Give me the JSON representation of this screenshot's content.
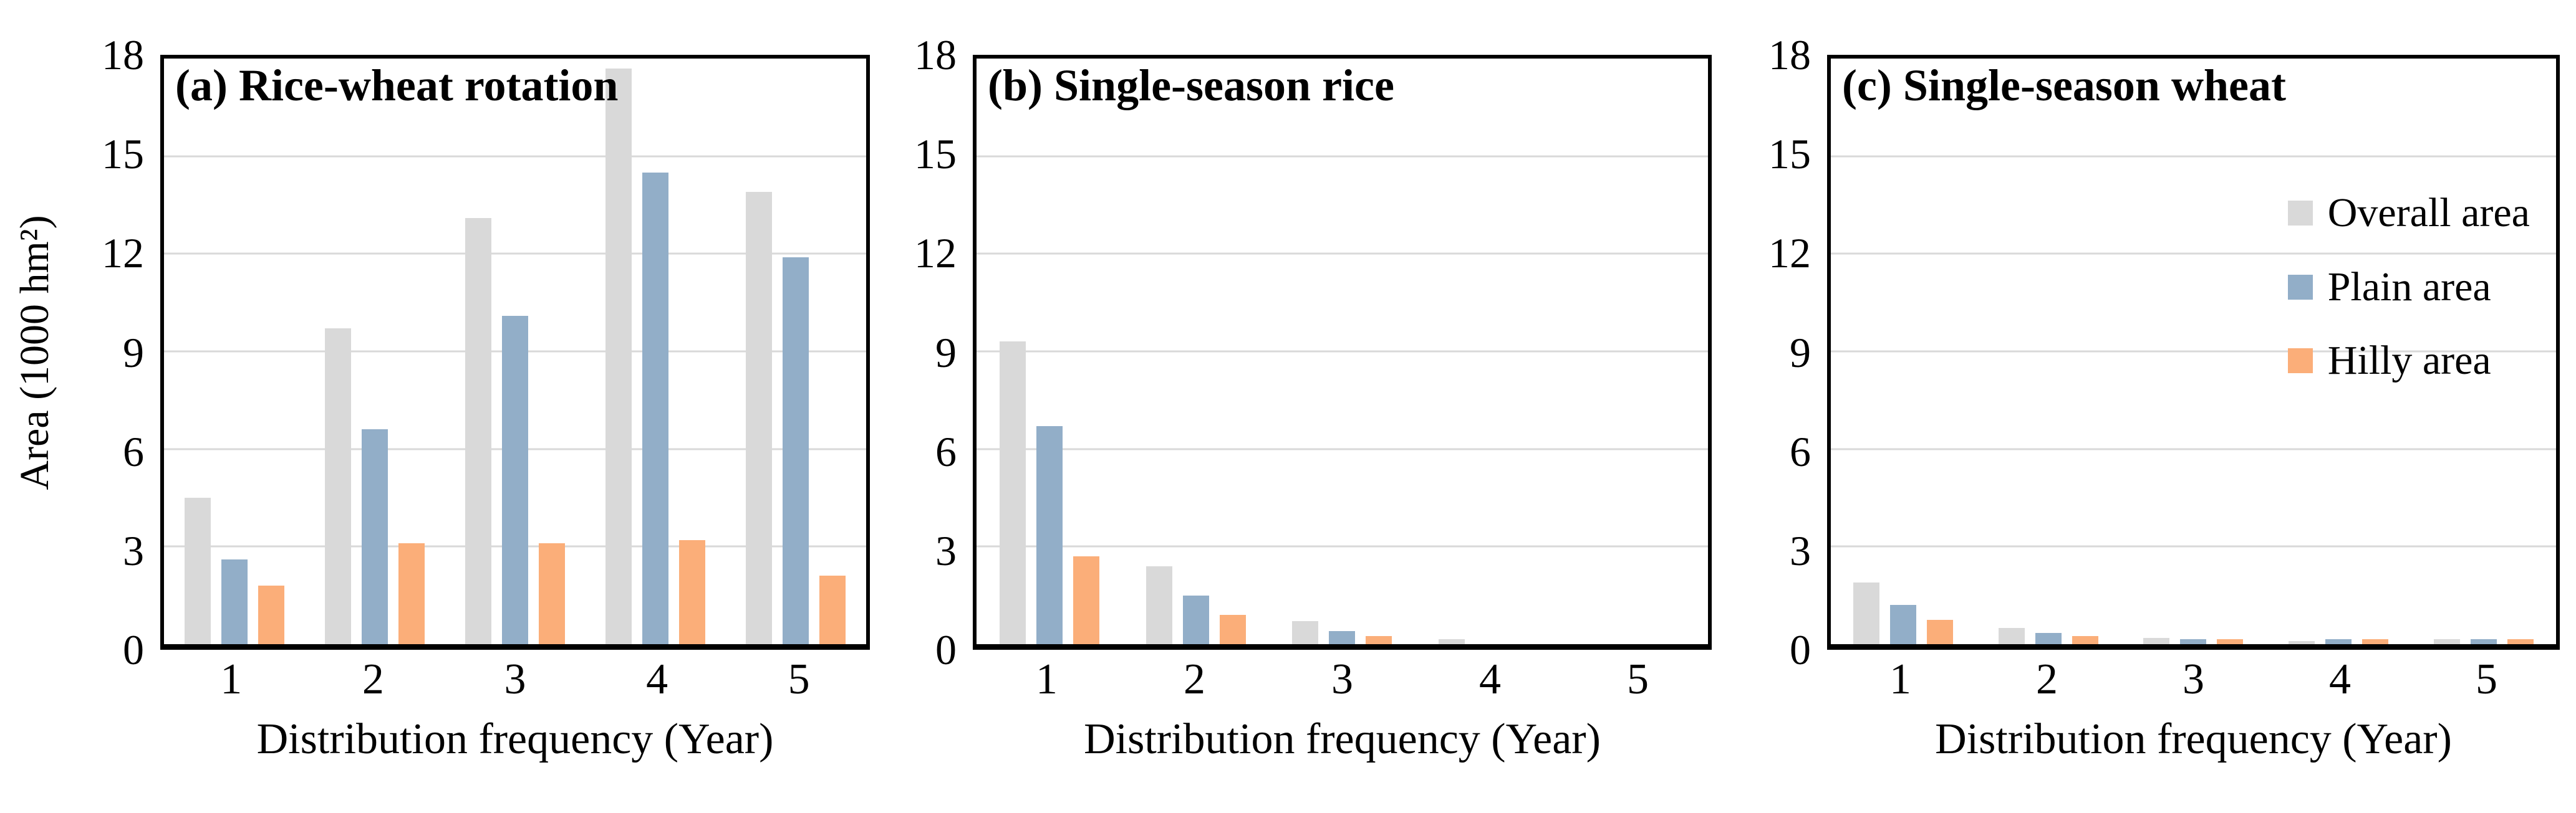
{
  "figure": {
    "y_axis_label": "Area (1000 hm²)",
    "x_axis_label": "Distribution frequency (Year)",
    "y_ticks": [
      0,
      3,
      6,
      9,
      12,
      15,
      18
    ],
    "gridline_color": "#d9d9d9",
    "frame_color": "#000000",
    "legend": [
      {
        "key": "overall",
        "label": "Overall area",
        "color": "#d9d9d9"
      },
      {
        "key": "plain",
        "label": "Plain area",
        "color": "#92aec8"
      },
      {
        "key": "hilly",
        "label": "Hilly area",
        "color": "#fbae79"
      }
    ]
  },
  "chart_data": [
    {
      "type": "bar",
      "title": "(a) Rice-wheat rotation",
      "categories": [
        "1",
        "2",
        "3",
        "4",
        "5"
      ],
      "series": [
        {
          "name": "Overall area",
          "values": [
            4.5,
            9.7,
            13.1,
            17.7,
            13.9
          ]
        },
        {
          "name": "Plain area",
          "values": [
            2.6,
            6.6,
            10.1,
            14.5,
            11.9
          ]
        },
        {
          "name": "Hilly area",
          "values": [
            1.8,
            3.1,
            3.1,
            3.2,
            2.1
          ]
        }
      ],
      "xlabel": "Distribution frequency (Year)",
      "ylabel": "Area (1000 hm²)",
      "ylim": [
        0,
        18
      ],
      "grid": true,
      "legend_position": "none"
    },
    {
      "type": "bar",
      "title": "(b) Single-season rice",
      "categories": [
        "1",
        "2",
        "3",
        "4",
        "5"
      ],
      "series": [
        {
          "name": "Overall area",
          "values": [
            9.3,
            2.4,
            0.7,
            0.15,
            0
          ]
        },
        {
          "name": "Plain area",
          "values": [
            6.7,
            1.5,
            0.4,
            0,
            0
          ]
        },
        {
          "name": "Hilly area",
          "values": [
            2.7,
            0.9,
            0.25,
            0,
            0
          ]
        }
      ],
      "xlabel": "Distribution frequency (Year)",
      "ylabel": "Area (1000 hm²)",
      "ylim": [
        0,
        18
      ],
      "grid": true,
      "legend_position": "none"
    },
    {
      "type": "bar",
      "title": "(c) Single-season wheat",
      "categories": [
        "1",
        "2",
        "3",
        "4",
        "5"
      ],
      "series": [
        {
          "name": "Overall area",
          "values": [
            1.9,
            0.5,
            0.2,
            0.1,
            0.15
          ]
        },
        {
          "name": "Plain area",
          "values": [
            1.2,
            0.35,
            0.15,
            0.15,
            0.15
          ]
        },
        {
          "name": "Hilly area",
          "values": [
            0.75,
            0.25,
            0.15,
            0.15,
            0.15
          ]
        }
      ],
      "xlabel": "Distribution frequency (Year)",
      "ylabel": "Area (1000 hm²)",
      "ylim": [
        0,
        18
      ],
      "grid": true,
      "legend_position": "upper right"
    }
  ]
}
